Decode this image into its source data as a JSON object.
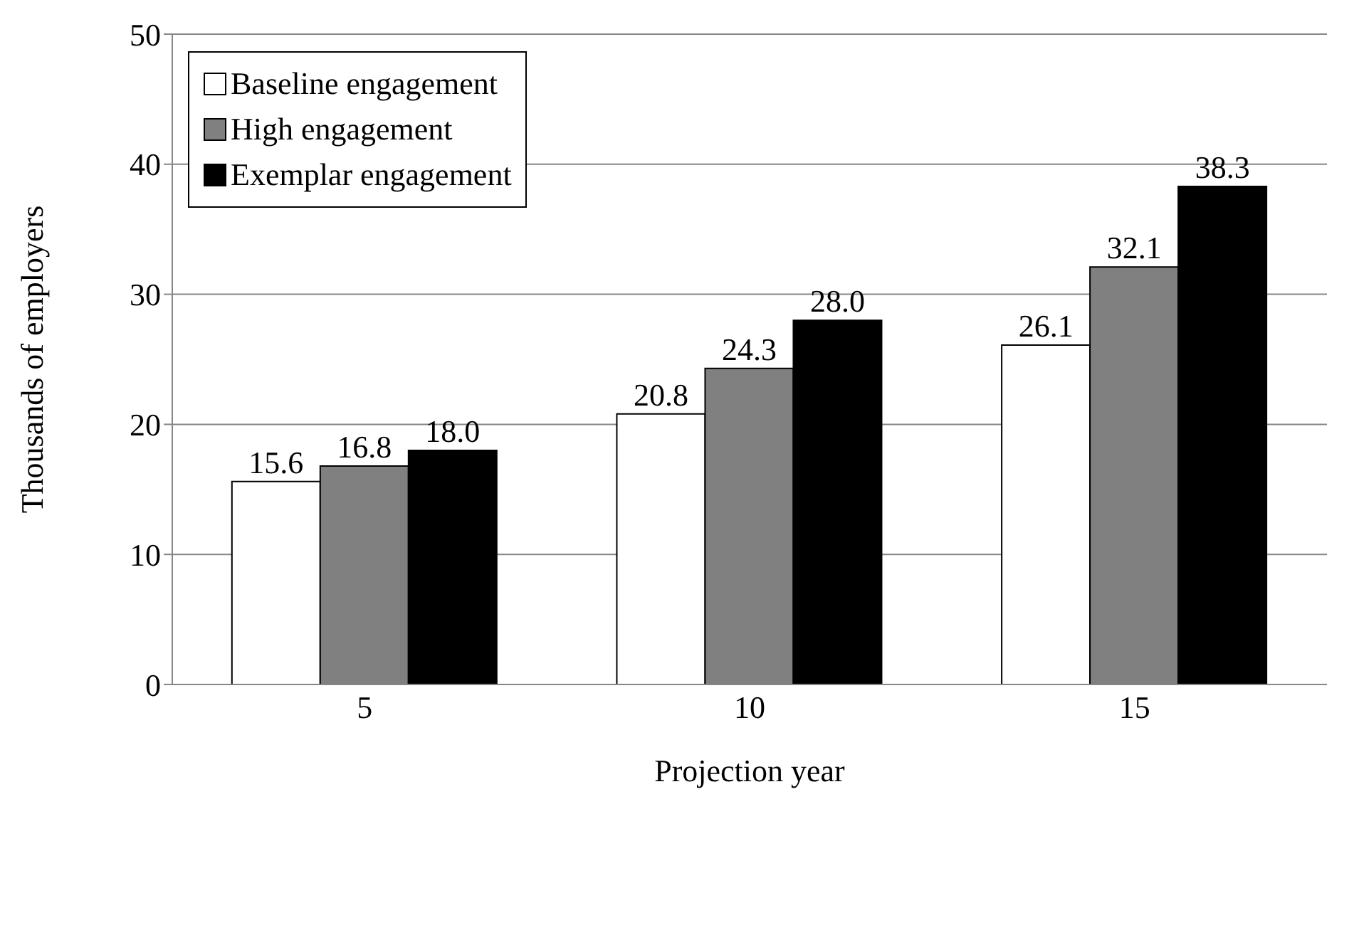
{
  "chart_data": {
    "type": "bar",
    "xlabel": "Projection year",
    "ylabel": "Thousands of employers",
    "categories": [
      "5",
      "10",
      "15"
    ],
    "series": [
      {
        "name": "Baseline engagement",
        "color": "#ffffff",
        "values": [
          15.6,
          20.8,
          26.1
        ],
        "value_labels": [
          "15.6",
          "20.8",
          "26.1"
        ]
      },
      {
        "name": "High engagement",
        "color": "#808080",
        "values": [
          16.8,
          24.3,
          32.1
        ],
        "value_labels": [
          "16.8",
          "24.3",
          "32.1"
        ]
      },
      {
        "name": "Exemplar engagement",
        "color": "#000000",
        "values": [
          18.0,
          28.0,
          38.3
        ],
        "value_labels": [
          "18.0",
          "28.0",
          "38.3"
        ]
      }
    ],
    "ylim": [
      0,
      50
    ],
    "yticks": [
      0,
      10,
      20,
      30,
      40,
      50
    ],
    "grid": "y",
    "legend": "top left"
  }
}
